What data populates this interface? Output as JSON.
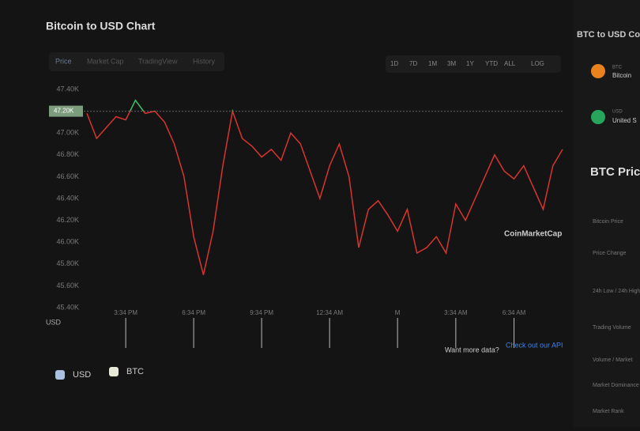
{
  "header": {
    "title": "Bitcoin to USD Chart"
  },
  "tabs": [
    "Price",
    "Market Cap",
    "TradingView",
    "History"
  ],
  "ranges": [
    "1D",
    "7D",
    "1M",
    "3M",
    "1Y",
    "YTD",
    "ALL",
    "LOG"
  ],
  "chart_data": {
    "type": "line",
    "current_price": {
      "value": 47200,
      "label": "47.20K"
    },
    "x": [
      0,
      0.5,
      1,
      1.5,
      2,
      2.5,
      3,
      3.5,
      4,
      4.5,
      5,
      5.5,
      6,
      6.5,
      7,
      7.5,
      8,
      8.5,
      9,
      9.5,
      10,
      10.5,
      11,
      11.5,
      12,
      12.5,
      13,
      13.5,
      14,
      14.5,
      15,
      15.5,
      16,
      16.5,
      17,
      17.5,
      18,
      18.5,
      19,
      19.5,
      20,
      20.5,
      21,
      21.5,
      22,
      22.5,
      23,
      23.5,
      24,
      24.5
    ],
    "series": [
      {
        "name": "USD",
        "color": "#d8342f",
        "up_color": "#3fbf6a",
        "values": [
          47180,
          46950,
          47050,
          47150,
          47120,
          47300,
          47180,
          47200,
          47100,
          46900,
          46600,
          46050,
          45700,
          46100,
          46700,
          47200,
          46950,
          46880,
          46780,
          46850,
          46750,
          47000,
          46900,
          46650,
          46400,
          46700,
          46900,
          46600,
          45950,
          46300,
          46380,
          46250,
          46100,
          46300,
          45900,
          45950,
          46050,
          45900,
          46350,
          46200,
          46400,
          46600,
          46800,
          46650,
          46580,
          46700,
          46500,
          46300,
          46700,
          46850
        ]
      }
    ],
    "xlim": [
      0,
      24.5
    ],
    "ylim": [
      45400,
      47400
    ],
    "xticks": [
      {
        "value": 2,
        "label": "3:34 PM"
      },
      {
        "value": 5.5,
        "label": "6:34 PM"
      },
      {
        "value": 9,
        "label": "9:34 PM"
      },
      {
        "value": 12.5,
        "label": "12:34 AM"
      },
      {
        "value": 16,
        "label": "M"
      },
      {
        "value": 19,
        "label": "3:34 AM"
      },
      {
        "value": 22,
        "label": "6:34 AM"
      }
    ],
    "yticks": [
      {
        "value": 47400,
        "label": "47.40K"
      },
      {
        "value": 47200,
        "label": "47.20K"
      },
      {
        "value": 47000,
        "label": "47.00K"
      },
      {
        "value": 46800,
        "label": "46.80K"
      },
      {
        "value": 46600,
        "label": "46.60K"
      },
      {
        "value": 46400,
        "label": "46.40K"
      },
      {
        "value": 46200,
        "label": "46.20K"
      },
      {
        "value": 46000,
        "label": "46.00K"
      },
      {
        "value": 45800,
        "label": "45.80K"
      },
      {
        "value": 45600,
        "label": "45.60K"
      },
      {
        "value": 45400,
        "label": "45.40K"
      }
    ],
    "legend": [
      "USD",
      "BTC"
    ],
    "navigator_label": "USD"
  },
  "watermark": "CoinMarketCap",
  "api_note": {
    "text": "Want more data?",
    "link": "Check out our API"
  },
  "side": {
    "converter_title": "BTC to USD Co",
    "from": {
      "code": "BTC",
      "name": "Bitcoin"
    },
    "to": {
      "code": "USD",
      "name": "United S"
    },
    "stats_title": "BTC Price",
    "stats": [
      "Bitcoin Price",
      "Price Change",
      "24h Low / 24h High",
      "Trading Volume",
      "Volume / Market",
      "Market Dominance",
      "Market Rank"
    ]
  }
}
